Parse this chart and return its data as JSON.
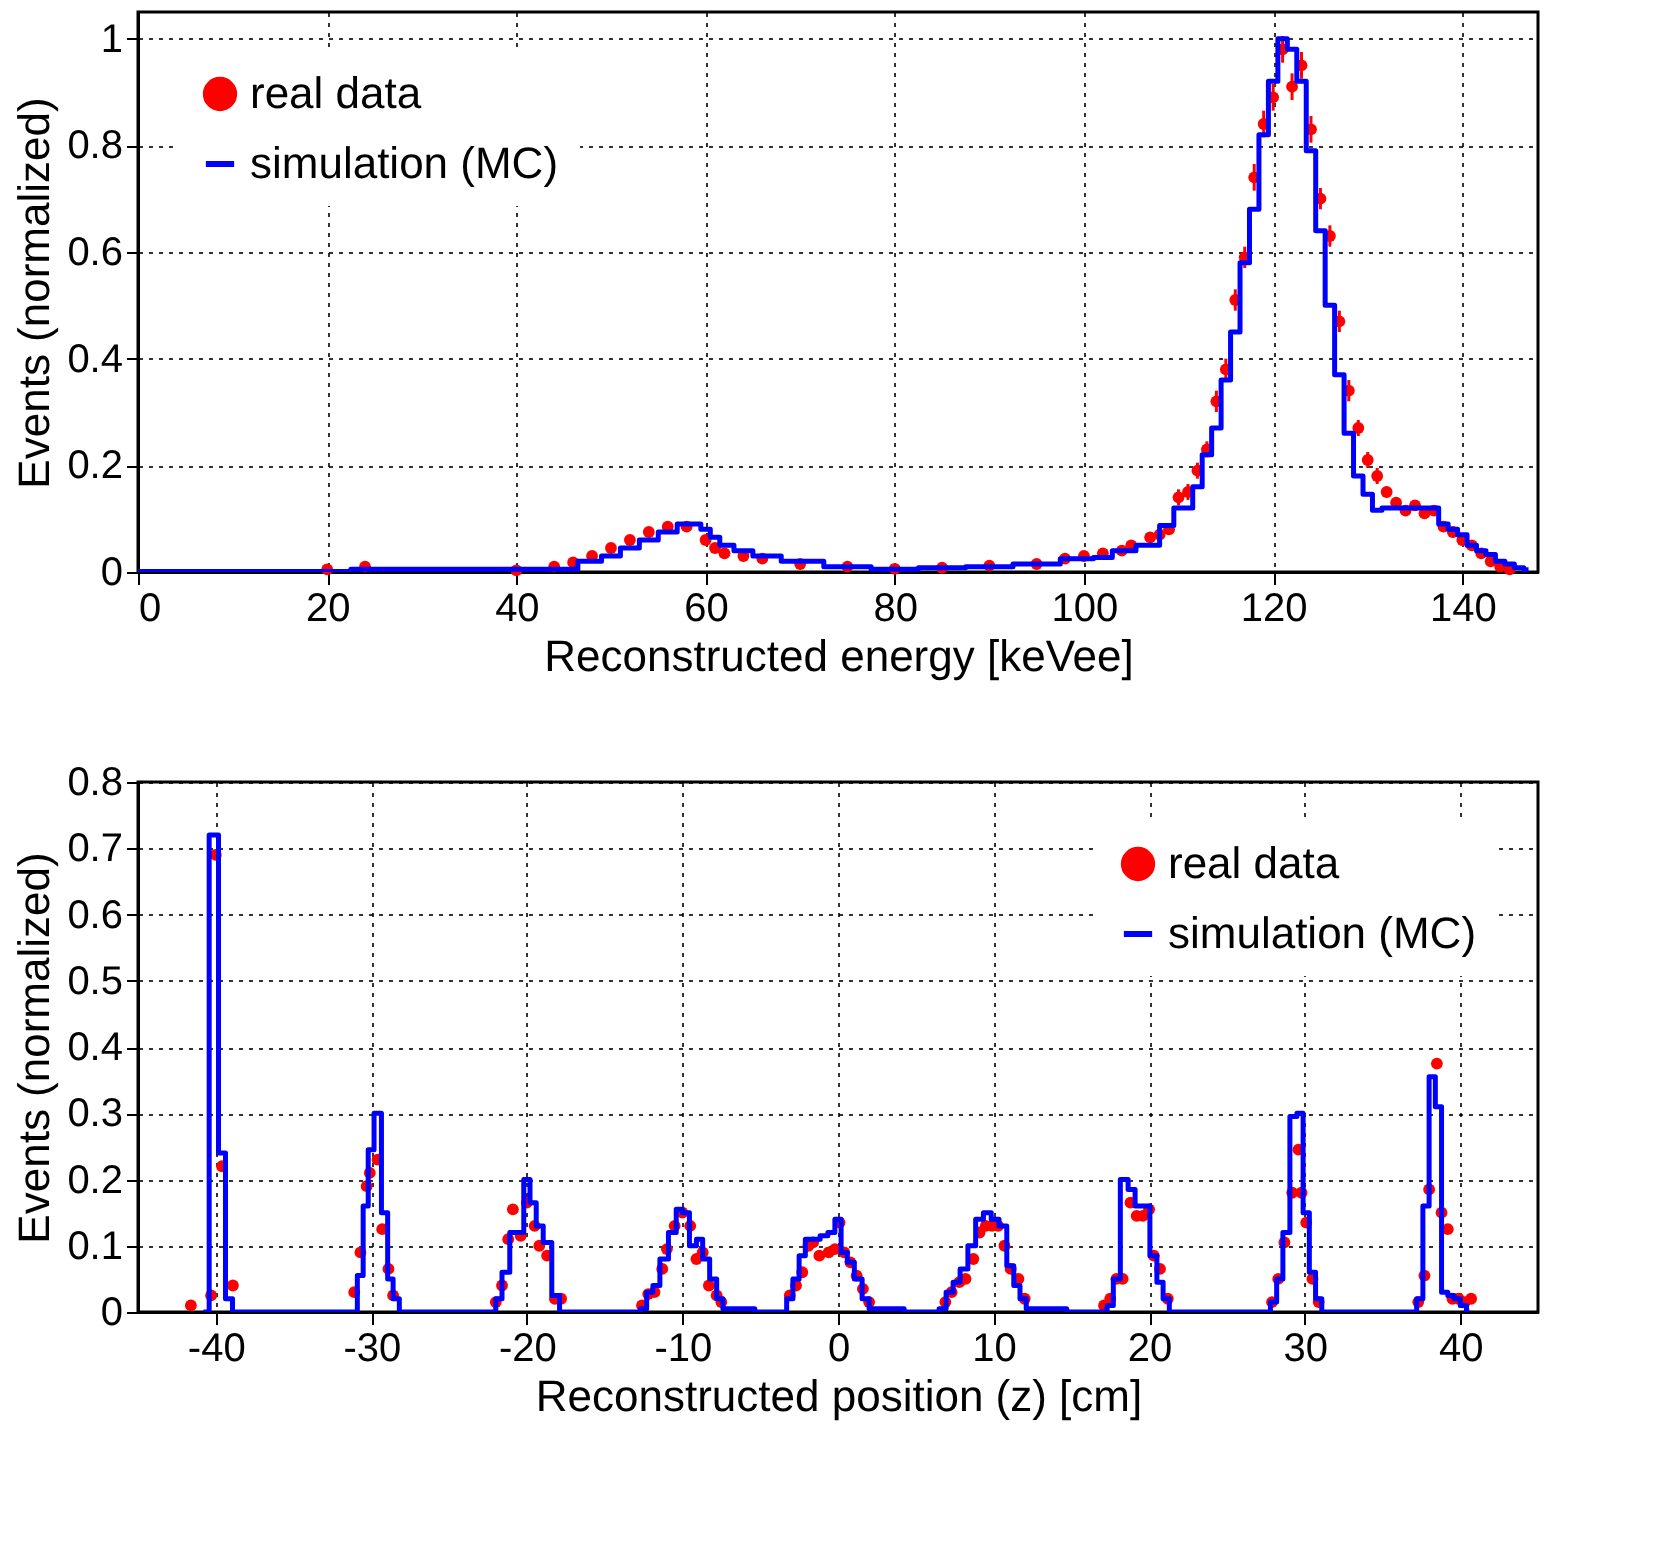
{
  "chart_data": [
    {
      "type": "step",
      "xlabel": "Reconstructed energy [keVee]",
      "ylabel": "Events (normalized)",
      "xlim": [
        0,
        148
      ],
      "ylim": [
        0,
        1.05
      ],
      "xticks": [
        0,
        20,
        40,
        60,
        80,
        100,
        120,
        140
      ],
      "yticks": [
        0,
        0.2,
        0.4,
        0.6,
        0.8,
        1
      ],
      "grid": true,
      "legend": "top left",
      "series": [
        {
          "name": "real data",
          "type": "scatter",
          "marker": "circle",
          "color": "#ff0000",
          "x": [
            20,
            24,
            40,
            44,
            46,
            48,
            50,
            52,
            54,
            56,
            58,
            60,
            61,
            62,
            64,
            66,
            70,
            75,
            80,
            85,
            90,
            95,
            98,
            100,
            102,
            104,
            105,
            107,
            108,
            109,
            110,
            111,
            112,
            113,
            114,
            115,
            116,
            117,
            118,
            119,
            120,
            121,
            122,
            123,
            124,
            125,
            126,
            127,
            128,
            129,
            130,
            131,
            132,
            133,
            134,
            135,
            136,
            137,
            138,
            139,
            140,
            141,
            142,
            143,
            144,
            145
          ],
          "values": [
            0.005,
            0.01,
            0.003,
            0.01,
            0.018,
            0.03,
            0.045,
            0.06,
            0.075,
            0.085,
            0.085,
            0.06,
            0.045,
            0.035,
            0.03,
            0.025,
            0.015,
            0.01,
            0.006,
            0.008,
            0.012,
            0.015,
            0.025,
            0.03,
            0.035,
            0.04,
            0.05,
            0.065,
            0.07,
            0.08,
            0.14,
            0.15,
            0.19,
            0.23,
            0.32,
            0.38,
            0.51,
            0.59,
            0.74,
            0.84,
            0.89,
            0.98,
            0.91,
            0.95,
            0.83,
            0.7,
            0.63,
            0.47,
            0.34,
            0.27,
            0.21,
            0.18,
            0.15,
            0.13,
            0.115,
            0.125,
            0.11,
            0.115,
            0.085,
            0.075,
            0.06,
            0.05,
            0.035,
            0.02,
            0.01,
            0.005
          ],
          "errors": [
            0.005,
            0.005,
            0.005,
            0.005,
            0.005,
            0.005,
            0.005,
            0.005,
            0.008,
            0.008,
            0.008,
            0.008,
            0.005,
            0.005,
            0.005,
            0.005,
            0.005,
            0.005,
            0.005,
            0.005,
            0.005,
            0.005,
            0.008,
            0.008,
            0.008,
            0.01,
            0.01,
            0.01,
            0.01,
            0.01,
            0.015,
            0.015,
            0.015,
            0.015,
            0.02,
            0.02,
            0.02,
            0.02,
            0.025,
            0.025,
            0.025,
            0.025,
            0.025,
            0.025,
            0.025,
            0.02,
            0.02,
            0.02,
            0.02,
            0.015,
            0.015,
            0.015,
            0.01,
            0.01,
            0.01,
            0.01,
            0.01,
            0.01,
            0.01,
            0.01,
            0.01,
            0.008,
            0.008,
            0.005,
            0.005,
            0.005
          ]
        },
        {
          "name": "simulation (MC)",
          "line_style": "solid",
          "color": "#0000ff",
          "x": [
            0,
            45,
            48,
            50,
            52,
            54,
            56,
            58,
            59,
            60,
            61,
            62,
            64,
            66,
            70,
            75,
            80,
            85,
            90,
            95,
            100,
            102,
            104,
            107,
            109,
            110,
            111,
            112,
            113,
            114,
            115,
            116,
            117,
            118,
            119,
            120,
            121,
            122,
            123,
            124,
            125,
            126,
            127,
            128,
            129,
            130,
            131,
            132,
            134,
            136,
            137,
            138,
            139,
            140,
            141,
            142,
            143,
            144,
            145,
            146,
            147
          ],
          "values": [
            0.001,
            0.005,
            0.02,
            0.03,
            0.045,
            0.06,
            0.075,
            0.09,
            0.09,
            0.08,
            0.065,
            0.05,
            0.04,
            0.03,
            0.02,
            0.01,
            0.005,
            0.008,
            0.01,
            0.015,
            0.025,
            0.027,
            0.04,
            0.05,
            0.087,
            0.12,
            0.12,
            0.16,
            0.22,
            0.27,
            0.36,
            0.45,
            0.58,
            0.68,
            0.82,
            0.92,
            1.0,
            0.98,
            0.92,
            0.79,
            0.64,
            0.5,
            0.37,
            0.26,
            0.18,
            0.146,
            0.116,
            0.12,
            0.12,
            0.12,
            0.12,
            0.09,
            0.08,
            0.07,
            0.05,
            0.04,
            0.033,
            0.02,
            0.015,
            0.008,
            0.004
          ]
        }
      ]
    },
    {
      "type": "step",
      "xlabel": "Reconstructed position (z) [cm]",
      "ylabel": "Events (normalized)",
      "xlim": [
        -45,
        45
      ],
      "ylim": [
        0,
        0.8
      ],
      "xticks": [
        -40,
        -30,
        -20,
        -10,
        0,
        10,
        20,
        30,
        40
      ],
      "yticks": [
        0,
        0.1,
        0.2,
        0.3,
        0.4,
        0.5,
        0.6,
        0.7,
        0.8
      ],
      "grid": true,
      "legend": "top right",
      "series": [
        {
          "name": "real data",
          "type": "scatter",
          "marker": "circle",
          "color": "#ff0000",
          "x": [
            -41.6,
            -40.3,
            -40,
            -39.6,
            -38.9,
            -31.1,
            -30.7,
            -30.3,
            -30.1,
            -29.6,
            -29.3,
            -28.9,
            -28.6,
            -22,
            -21.6,
            -21.2,
            -20.9,
            -20.4,
            -20,
            -19.5,
            -19.2,
            -18.7,
            -18.2,
            -17.8,
            -12.6,
            -12.2,
            -11.8,
            -11.3,
            -11,
            -10.5,
            -10,
            -9.5,
            -9.1,
            -8.7,
            -8.3,
            -7.8,
            -7.5,
            -3.1,
            -2.7,
            -2.3,
            -1.9,
            -1.6,
            -1.2,
            -0.6,
            -0.2,
            0.1,
            0.4,
            0.8,
            1.2,
            1.6,
            2.0,
            6.9,
            7.3,
            7.8,
            8.2,
            8.7,
            9.1,
            9.5,
            9.9,
            10.3,
            10.7,
            11.1,
            11.6,
            12.0,
            17.1,
            17.5,
            17.9,
            18.3,
            18.8,
            19.2,
            19.6,
            20.0,
            20.3,
            20.7,
            21.2,
            27.9,
            28.3,
            28.7,
            29.2,
            29.6,
            29.8,
            30.1,
            30.5,
            30.9,
            37.3,
            37.7,
            38.0,
            38.5,
            38.8,
            39.2,
            39.5,
            39.9,
            40.3,
            40.7
          ],
          "values": [
            0.01,
            0.025,
            0.69,
            0.22,
            0.04,
            0.03,
            0.09,
            0.19,
            0.21,
            0.23,
            0.125,
            0.065,
            0.025,
            0.015,
            0.04,
            0.11,
            0.155,
            0.115,
            0.165,
            0.13,
            0.1,
            0.085,
            0.02,
            0.02,
            0.01,
            0.027,
            0.03,
            0.065,
            0.095,
            0.13,
            0.15,
            0.13,
            0.08,
            0.09,
            0.04,
            0.025,
            0.015,
            0.025,
            0.04,
            0.06,
            0.1,
            0.105,
            0.085,
            0.09,
            0.095,
            0.135,
            0.09,
            0.075,
            0.055,
            0.035,
            0.015,
            0.015,
            0.03,
            0.045,
            0.05,
            0.08,
            0.12,
            0.13,
            0.13,
            0.13,
            0.1,
            0.065,
            0.05,
            0.02,
            0.01,
            0.02,
            0.05,
            0.05,
            0.165,
            0.145,
            0.145,
            0.155,
            0.085,
            0.065,
            0.02,
            0.015,
            0.05,
            0.105,
            0.18,
            0.245,
            0.18,
            0.135,
            0.05,
            0.015,
            0.015,
            0.055,
            0.185,
            0.375,
            0.15,
            0.125,
            0.02,
            0.02,
            0.015,
            0.02
          ]
        },
        {
          "name": "simulation (MC)",
          "line_style": "solid",
          "color": "#0000ff",
          "x": [
            -40.8,
            -40.05,
            -39.6,
            -39.15,
            -38.7,
            -31.1,
            -30.7,
            -30.35,
            -30.05,
            -29.6,
            -29.1,
            -28.8,
            -28.4,
            -28.0,
            -22.2,
            -21.8,
            -21.4,
            -20.8,
            -20.4,
            -20,
            -19.6,
            -19.2,
            -18.7,
            -18.1,
            -17.7,
            -12.9,
            -12.5,
            -12.1,
            -11.7,
            -11.2,
            -10.6,
            -10.2,
            -9.8,
            -9.3,
            -8.9,
            -8.5,
            -8,
            -7.6,
            -7.2,
            -3.5,
            -3.1,
            -2.7,
            -2.3,
            -1.9,
            -1.4,
            -0.9,
            -0.4,
            0,
            0.4,
            0.8,
            1.3,
            1.8,
            2.2,
            6.3,
            6.7,
            7.2,
            7.6,
            8.1,
            8.6,
            9.1,
            9.6,
            10.1,
            10.6,
            11.1,
            11.5,
            11.9,
            12.3,
            17.1,
            17.5,
            17.9,
            18.4,
            18.9,
            19.3,
            19.8,
            20.3,
            20.7,
            21.1,
            21.5,
            27.6,
            28.0,
            28.4,
            28.8,
            29.3,
            29.7,
            30.1,
            30.5,
            30.9,
            31.3,
            37.0,
            37.4,
            37.8,
            38.2,
            38.6,
            39.0,
            39.4,
            39.8,
            40.2,
            40.6
          ],
          "values": [
            0,
            0.72,
            0.24,
            0.02,
            0,
            0,
            0.055,
            0.16,
            0.245,
            0.3,
            0.15,
            0.05,
            0.02,
            0,
            0,
            0.02,
            0.06,
            0.12,
            0.12,
            0.2,
            0.165,
            0.13,
            0.105,
            0.025,
            0,
            0,
            0.005,
            0.03,
            0.04,
            0.08,
            0.12,
            0.155,
            0.15,
            0.1,
            0.11,
            0.08,
            0.05,
            0.02,
            0.005,
            0,
            0.02,
            0.05,
            0.085,
            0.11,
            0.11,
            0.115,
            0.12,
            0.14,
            0.09,
            0.075,
            0.05,
            0.02,
            0.005,
            0,
            0.005,
            0.03,
            0.045,
            0.065,
            0.1,
            0.14,
            0.15,
            0.14,
            0.13,
            0.07,
            0.04,
            0.02,
            0.005,
            0,
            0.01,
            0.05,
            0.2,
            0.185,
            0.16,
            0.16,
            0.085,
            0.045,
            0.02,
            0,
            0,
            0.015,
            0.05,
            0.12,
            0.295,
            0.3,
            0.15,
            0.06,
            0.02,
            0,
            0,
            0.02,
            0.16,
            0.355,
            0.31,
            0.03,
            0.025,
            0.02,
            0.01,
            0
          ]
        }
      ]
    }
  ]
}
